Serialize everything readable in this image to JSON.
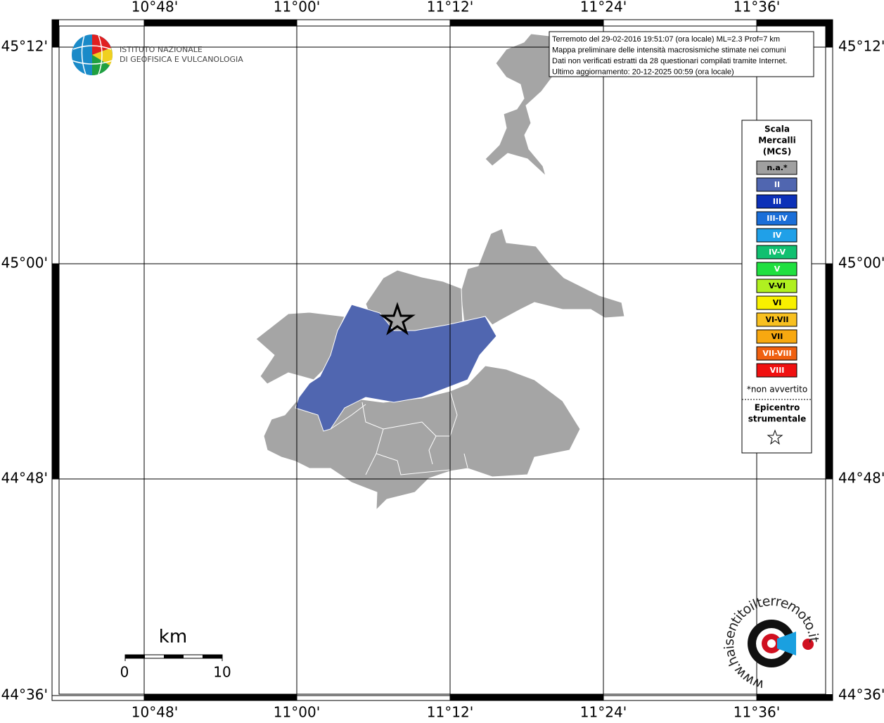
{
  "map": {
    "lon_labels": [
      "10°48'",
      "11°00'",
      "11°12'",
      "11°24'",
      "11°36'"
    ],
    "lat_labels": [
      "45°12'",
      "45°00'",
      "44°48'",
      "44°36'"
    ],
    "info": [
      "Terremoto del 29-02-2016 19:51:07 (ora locale) ML=2.3 Prof=7 km",
      "Mappa preliminare delle intensità macrosismiche stimate nei comuni",
      "Dati non verificati estratti da 28 questionari compilati tramite Internet.",
      "Ultimo aggiornamento: 20-12-2025 00:59 (ora locale)"
    ],
    "institute": [
      "ISTITUTO NAZIONALE",
      "DI GEOFISICA E VULCANOLOGIA"
    ],
    "legend": {
      "title": [
        "Scala",
        "Mercalli",
        "(MCS)"
      ],
      "items": [
        {
          "label": "n.a.*",
          "color": "#a0a0a0"
        },
        {
          "label": "II",
          "color": "#5066b0"
        },
        {
          "label": "III",
          "color": "#0c30b8"
        },
        {
          "label": "III-IV",
          "color": "#1a6ed8"
        },
        {
          "label": "IV",
          "color": "#20a0e8"
        },
        {
          "label": "IV-V",
          "color": "#10c070"
        },
        {
          "label": "V",
          "color": "#20e040"
        },
        {
          "label": "V-VI",
          "color": "#b0f020"
        },
        {
          "label": "VI",
          "color": "#f8f000"
        },
        {
          "label": "VI-VII",
          "color": "#f8c020"
        },
        {
          "label": "VII",
          "color": "#f8a810"
        },
        {
          "label": "VII-VIII",
          "color": "#f06010"
        },
        {
          "label": "VIII",
          "color": "#f01010"
        }
      ],
      "note": "*non avvertito",
      "epicenter": [
        "Epicentro",
        "strumentale"
      ]
    },
    "scale_bar": {
      "unit": "km",
      "labels": [
        "0",
        "10"
      ]
    },
    "watermark": "www.haisentitoilterremoto.it"
  }
}
